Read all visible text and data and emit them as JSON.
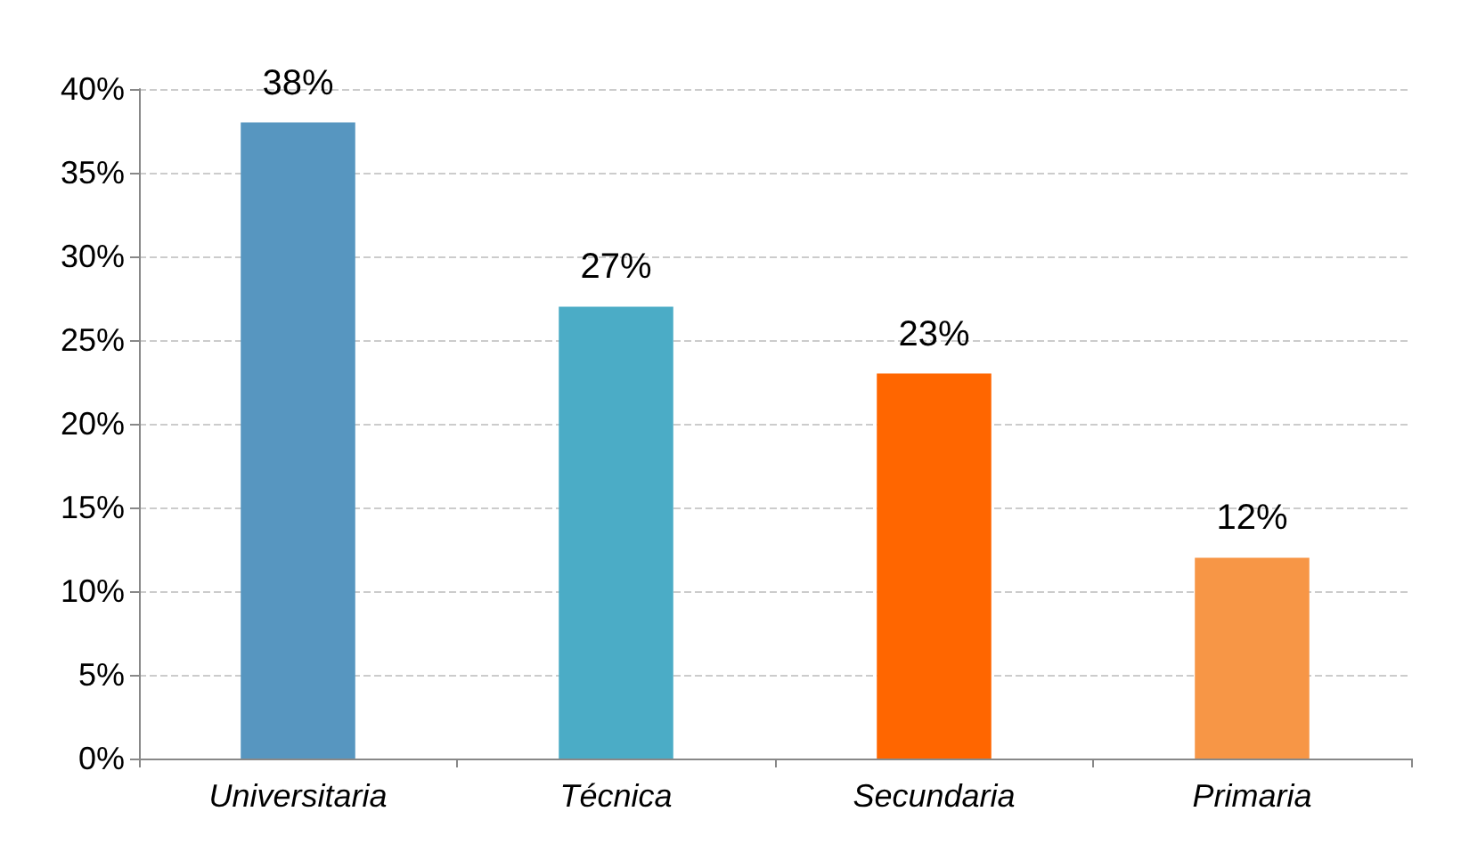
{
  "chart_data": {
    "type": "bar",
    "categories": [
      "Universitaria",
      "Técnica",
      "Secundaria",
      "Primaria"
    ],
    "values": [
      38,
      27,
      23,
      12
    ],
    "colors": [
      "#5796c0",
      "#4bacc6",
      "#ff6600",
      "#f79646"
    ],
    "value_labels": [
      "38%",
      "27%",
      "23%",
      "12%"
    ],
    "ylim": [
      0,
      40
    ],
    "yticks": [
      {
        "value": 0,
        "label": "0%"
      },
      {
        "value": 5,
        "label": "5%"
      },
      {
        "value": 10,
        "label": "10%"
      },
      {
        "value": 15,
        "label": "15%"
      },
      {
        "value": 20,
        "label": "20%"
      },
      {
        "value": 25,
        "label": "25%"
      },
      {
        "value": 30,
        "label": "30%"
      },
      {
        "value": 35,
        "label": "35%"
      },
      {
        "value": 40,
        "label": "40%"
      }
    ],
    "grid": "y"
  }
}
